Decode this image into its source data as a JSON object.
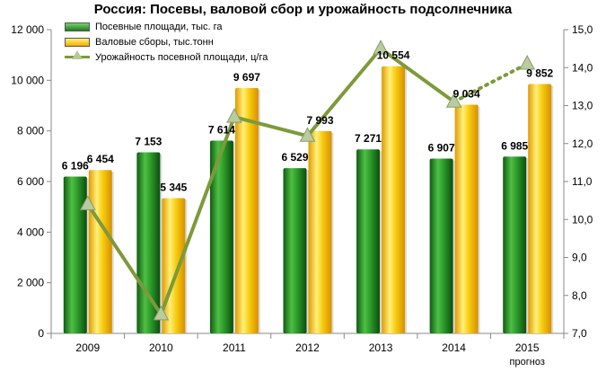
{
  "chart_data": {
    "type": "bar",
    "title": "Россия: Посевы, валовой сбор и урожайность подсолнечника",
    "categories": [
      "2009",
      "2010",
      "2011",
      "2012",
      "2013",
      "2014",
      "2015"
    ],
    "category_sublabels": [
      "",
      "",
      "",
      "",
      "",
      "",
      "прогноз"
    ],
    "series": [
      {
        "name": "Посевные площади, тыс. га",
        "type": "bar",
        "axis": "left",
        "color": "#2a8a2a",
        "values": [
          6196,
          7153,
          7614,
          6529,
          7271,
          6907,
          6985
        ],
        "labels": [
          "6 196",
          "7 153",
          "7 614",
          "6 529",
          "7 271",
          "6 907",
          "6 985"
        ]
      },
      {
        "name": "Валовые сборы, тыс.тонн",
        "type": "bar",
        "axis": "left",
        "color": "#f5c400",
        "values": [
          6454,
          5345,
          9697,
          7993,
          10554,
          9034,
          9852
        ],
        "labels": [
          "6 454",
          "5 345",
          "9 697",
          "7 993",
          "10 554",
          "9 034",
          "9 852"
        ]
      },
      {
        "name": "Урожайность посевной площади, ц/га",
        "type": "line",
        "axis": "right",
        "color": "#7d9a3a",
        "values": [
          10.4,
          7.5,
          12.7,
          12.2,
          14.5,
          13.1,
          14.1
        ],
        "dotted_last_segment": true
      }
    ],
    "y_left": {
      "ylim": [
        0,
        12000
      ],
      "ticks": [
        0,
        2000,
        4000,
        6000,
        8000,
        10000,
        12000
      ],
      "tick_labels": [
        "0",
        "2 000",
        "4 000",
        "6 000",
        "8 000",
        "10 000",
        "12 000"
      ]
    },
    "y_right": {
      "ylim": [
        7.0,
        15.0
      ],
      "ticks": [
        7,
        8,
        9,
        10,
        11,
        12,
        13,
        14,
        15
      ],
      "tick_labels": [
        "7,0",
        "8,0",
        "9,0",
        "10,0",
        "11,0",
        "12,0",
        "13,0",
        "14,0",
        "15,0"
      ]
    },
    "grid": false,
    "legend": "top-left"
  }
}
